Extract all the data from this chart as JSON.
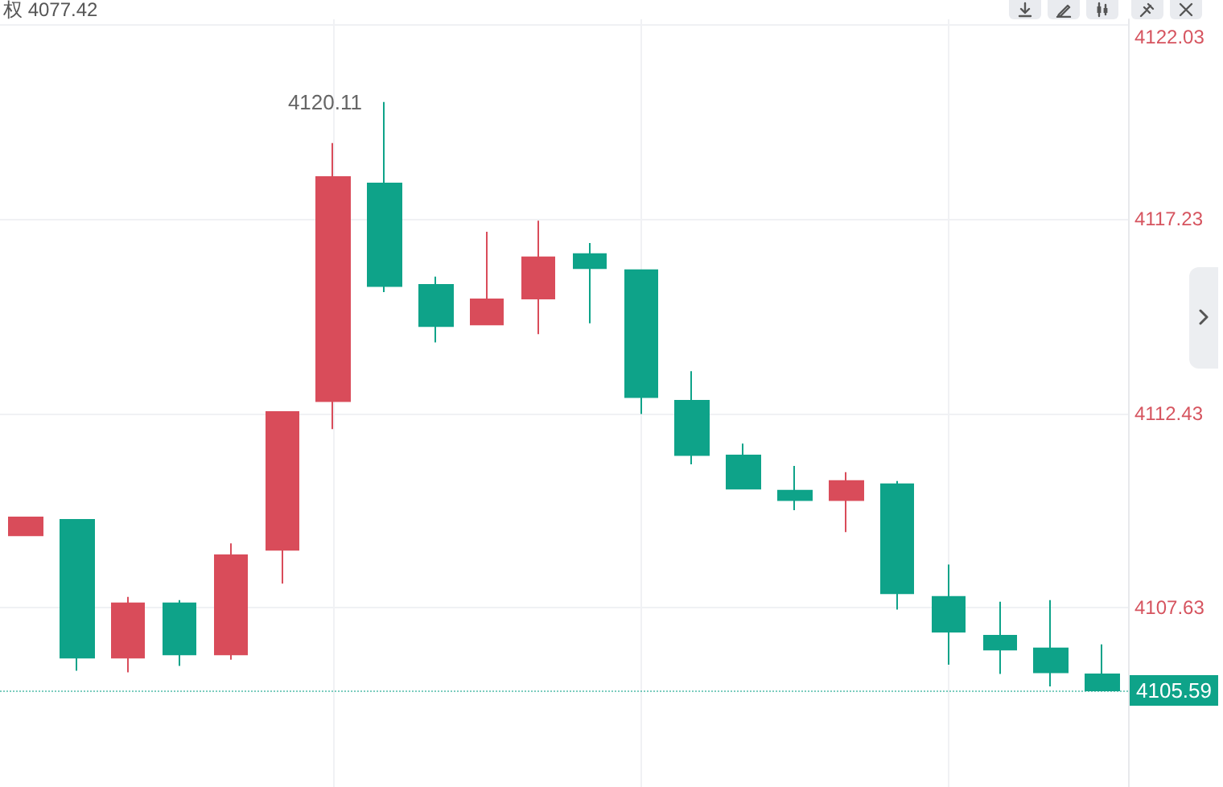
{
  "chart_data": {
    "type": "candlestick",
    "title": "权 4077.42",
    "categories": [
      null,
      null,
      null,
      null,
      null,
      null,
      null,
      null,
      null,
      null,
      null,
      null,
      null,
      null,
      null,
      null,
      null,
      null,
      null,
      null,
      null,
      null
    ],
    "ohlc": [
      [
        4109.42,
        4109.86,
        4109.42,
        4109.86
      ],
      [
        4109.8,
        4109.8,
        4106.08,
        4106.4
      ],
      [
        4106.4,
        4107.9,
        4106.04,
        4107.74
      ],
      [
        4107.74,
        4107.82,
        4106.2,
        4106.48
      ],
      [
        4106.48,
        4109.22,
        4106.35,
        4108.93
      ],
      [
        4109.06,
        4112.46,
        4108.23,
        4112.46
      ],
      [
        4112.73,
        4119.1,
        4112.04,
        4118.26
      ],
      [
        4118.1,
        4120.11,
        4115.42,
        4115.57
      ],
      [
        4115.6,
        4115.8,
        4114.18,
        4114.58
      ],
      [
        4114.62,
        4116.91,
        4114.62,
        4115.24
      ],
      [
        4115.26,
        4117.18,
        4114.38,
        4116.28
      ],
      [
        4116.36,
        4116.63,
        4114.65,
        4116.01
      ],
      [
        4115.96,
        4115.96,
        4112.41,
        4112.83
      ],
      [
        4112.74,
        4113.47,
        4111.17,
        4111.4
      ],
      [
        4111.39,
        4111.68,
        4110.57,
        4110.57
      ],
      [
        4110.52,
        4111.13,
        4110.04,
        4110.29
      ],
      [
        4110.29,
        4110.98,
        4109.5,
        4110.76
      ],
      [
        4110.68,
        4110.76,
        4107.59,
        4107.99
      ],
      [
        4107.9,
        4108.7,
        4106.23,
        4107.04
      ],
      [
        4106.94,
        4107.78,
        4106.0,
        4106.6
      ],
      [
        4106.63,
        4107.82,
        4105.69,
        4106.04
      ],
      [
        4105.99,
        4106.73,
        4105.59,
        4105.59
      ]
    ],
    "colors": [
      "#d94c5a",
      "#0ea389",
      "#d94c5a",
      "#0ea389",
      "#d94c5a",
      "#d94c5a",
      "#d94c5a",
      "#0ea389",
      "#0ea389",
      "#d94c5a",
      "#d94c5a",
      "#0ea389",
      "#0ea389",
      "#0ea389",
      "#0ea389",
      "#0ea389",
      "#d94c5a",
      "#0ea389",
      "#0ea389",
      "#0ea389",
      "#0ea389",
      "#0ea389"
    ],
    "ylim": [
      4103.21,
      4122.15
    ],
    "yticks": [
      4107.63,
      4112.43,
      4117.23,
      4122.03
    ],
    "tick_labels": "y",
    "grid": true,
    "ref_lines": [
      {
        "axis": "y",
        "value": 4105.59,
        "label": "4105.59",
        "color": "#0ea389",
        "line_style": "dotted"
      }
    ],
    "annotations": [
      "4120.11"
    ]
  }
}
